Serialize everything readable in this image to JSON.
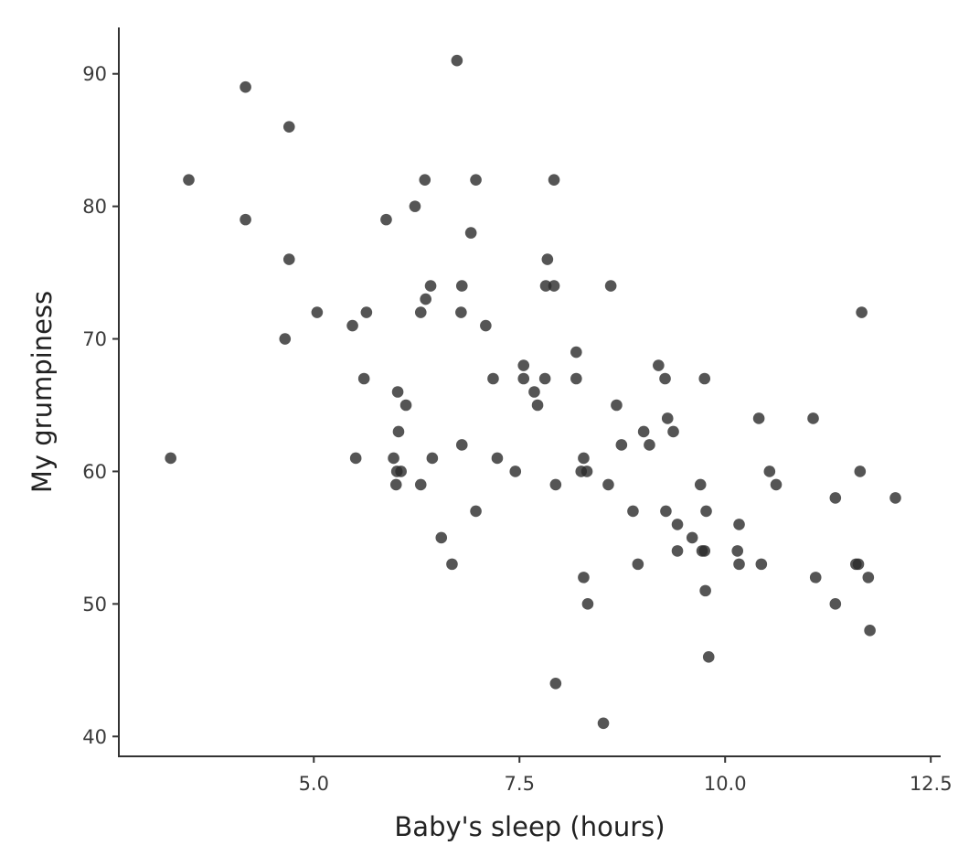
{
  "chart_data": {
    "type": "scatter",
    "title": "",
    "xlabel": "Baby's sleep (hours)",
    "ylabel": "My grumpiness",
    "xlim": [
      2.63,
      12.62
    ],
    "ylim": [
      38.5,
      93.5
    ],
    "xticks": [
      5.0,
      7.5,
      10.0,
      12.5
    ],
    "xtick_labels": [
      "5.0",
      "7.5",
      "10.0",
      "12.5"
    ],
    "yticks": [
      40,
      50,
      60,
      70,
      80,
      90
    ],
    "ytick_labels": [
      "40",
      "50",
      "60",
      "70",
      "80",
      "90"
    ],
    "grid": false,
    "legend": "none",
    "point_color": "#2b2b2b",
    "points": [
      {
        "x": 6.74,
        "y": 91
      },
      {
        "x": 4.17,
        "y": 89
      },
      {
        "x": 4.7,
        "y": 86
      },
      {
        "x": 3.48,
        "y": 82
      },
      {
        "x": 6.35,
        "y": 82
      },
      {
        "x": 6.97,
        "y": 82
      },
      {
        "x": 7.92,
        "y": 82
      },
      {
        "x": 6.23,
        "y": 80
      },
      {
        "x": 4.17,
        "y": 79
      },
      {
        "x": 5.88,
        "y": 79
      },
      {
        "x": 6.91,
        "y": 78
      },
      {
        "x": 4.7,
        "y": 76
      },
      {
        "x": 7.84,
        "y": 76
      },
      {
        "x": 6.42,
        "y": 74
      },
      {
        "x": 6.8,
        "y": 74
      },
      {
        "x": 7.82,
        "y": 74
      },
      {
        "x": 7.92,
        "y": 74
      },
      {
        "x": 8.61,
        "y": 74
      },
      {
        "x": 6.36,
        "y": 73
      },
      {
        "x": 5.04,
        "y": 72
      },
      {
        "x": 5.64,
        "y": 72
      },
      {
        "x": 6.3,
        "y": 72
      },
      {
        "x": 6.79,
        "y": 72
      },
      {
        "x": 11.66,
        "y": 72
      },
      {
        "x": 5.47,
        "y": 71
      },
      {
        "x": 7.09,
        "y": 71
      },
      {
        "x": 4.65,
        "y": 70
      },
      {
        "x": 8.19,
        "y": 69
      },
      {
        "x": 7.55,
        "y": 68
      },
      {
        "x": 9.19,
        "y": 68
      },
      {
        "x": 5.61,
        "y": 67
      },
      {
        "x": 7.18,
        "y": 67
      },
      {
        "x": 7.55,
        "y": 67
      },
      {
        "x": 7.81,
        "y": 67
      },
      {
        "x": 8.19,
        "y": 67
      },
      {
        "x": 9.27,
        "y": 67
      },
      {
        "x": 9.75,
        "y": 67
      },
      {
        "x": 6.02,
        "y": 66
      },
      {
        "x": 7.68,
        "y": 66
      },
      {
        "x": 6.12,
        "y": 65
      },
      {
        "x": 7.72,
        "y": 65
      },
      {
        "x": 8.68,
        "y": 65
      },
      {
        "x": 9.3,
        "y": 64
      },
      {
        "x": 10.41,
        "y": 64
      },
      {
        "x": 11.07,
        "y": 64
      },
      {
        "x": 6.03,
        "y": 63
      },
      {
        "x": 9.01,
        "y": 63
      },
      {
        "x": 9.37,
        "y": 63
      },
      {
        "x": 6.8,
        "y": 62
      },
      {
        "x": 8.74,
        "y": 62
      },
      {
        "x": 9.08,
        "y": 62
      },
      {
        "x": 3.26,
        "y": 61
      },
      {
        "x": 5.51,
        "y": 61
      },
      {
        "x": 5.97,
        "y": 61
      },
      {
        "x": 6.44,
        "y": 61
      },
      {
        "x": 7.23,
        "y": 61
      },
      {
        "x": 8.28,
        "y": 61
      },
      {
        "x": 6.01,
        "y": 60
      },
      {
        "x": 6.06,
        "y": 60
      },
      {
        "x": 7.45,
        "y": 60
      },
      {
        "x": 8.25,
        "y": 60
      },
      {
        "x": 8.32,
        "y": 60
      },
      {
        "x": 10.54,
        "y": 60
      },
      {
        "x": 11.64,
        "y": 60
      },
      {
        "x": 6.0,
        "y": 59
      },
      {
        "x": 6.3,
        "y": 59
      },
      {
        "x": 7.94,
        "y": 59
      },
      {
        "x": 8.58,
        "y": 59
      },
      {
        "x": 9.7,
        "y": 59
      },
      {
        "x": 10.62,
        "y": 59
      },
      {
        "x": 11.34,
        "y": 58
      },
      {
        "x": 12.07,
        "y": 58
      },
      {
        "x": 6.97,
        "y": 57
      },
      {
        "x": 8.88,
        "y": 57
      },
      {
        "x": 9.28,
        "y": 57
      },
      {
        "x": 9.77,
        "y": 57
      },
      {
        "x": 9.42,
        "y": 56
      },
      {
        "x": 10.17,
        "y": 56
      },
      {
        "x": 6.55,
        "y": 55
      },
      {
        "x": 9.6,
        "y": 55
      },
      {
        "x": 9.42,
        "y": 54
      },
      {
        "x": 9.72,
        "y": 54
      },
      {
        "x": 9.75,
        "y": 54
      },
      {
        "x": 10.15,
        "y": 54
      },
      {
        "x": 6.68,
        "y": 53
      },
      {
        "x": 8.94,
        "y": 53
      },
      {
        "x": 10.17,
        "y": 53
      },
      {
        "x": 10.44,
        "y": 53
      },
      {
        "x": 11.59,
        "y": 53
      },
      {
        "x": 11.62,
        "y": 53
      },
      {
        "x": 8.28,
        "y": 52
      },
      {
        "x": 11.1,
        "y": 52
      },
      {
        "x": 11.74,
        "y": 52
      },
      {
        "x": 9.76,
        "y": 51
      },
      {
        "x": 8.33,
        "y": 50
      },
      {
        "x": 11.34,
        "y": 50
      },
      {
        "x": 11.76,
        "y": 48
      },
      {
        "x": 9.8,
        "y": 46
      },
      {
        "x": 7.94,
        "y": 44
      },
      {
        "x": 8.52,
        "y": 41
      }
    ]
  }
}
